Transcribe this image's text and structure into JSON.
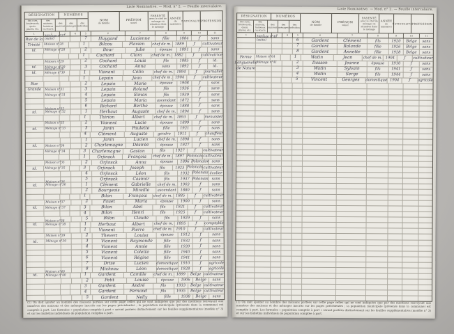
{
  "caption": "Liste Nominative. — Mod. n° 2. — Feuille intercalaire.",
  "header": {
    "designation_group": "DÉSIGNATION",
    "numero_group": "NUMÉROS",
    "sub_rues": "des rues, boulevards, quais, places, etc.",
    "sub_maisons": "des maisons, hameaux ou écarts",
    "sub_num_maisons": "des maisons",
    "sub_num_menages": "des ménages",
    "sub_num_individus": "des individus",
    "nom_main": "NOM",
    "nom_sub": "de famille",
    "prenom_main": "PRÉNOM",
    "prenom_sub": "usuel",
    "parente_main": "PARENTÉ",
    "parente_sub": "avec le chef de ménage ou situation dans le ménage",
    "annee_main": "ANNÉE",
    "annee_sub": "de naissance",
    "nationalite_main": "NATIONALITÉ",
    "profession_main": "PROFESSION",
    "column_numbers": [
      "1",
      "2",
      "3",
      "4",
      "5",
      "6",
      "7",
      "8",
      "9",
      "10",
      "11"
    ]
  },
  "left_page": {
    "rows": [
      [
        "Rue de la",
        "Ménage n°27|(suite)",
        "7",
        "Huygand",
        "Lucienne",
        "fille",
        "1884",
        "ƒ",
        "sans"
      ],
      [
        "Trinité",
        "Maison n°28",
        "1",
        "Bilcou",
        "Flavien",
        "chef de m.",
        "1889",
        "ƒ",
        "cultivateur"
      ],
      [
        "id.",
        "Ménage n°28",
        "2",
        "Bour",
        "Julie",
        "épouse",
        "1891",
        "ƒ",
        "sans"
      ],
      [
        "",
        "",
        "1",
        "Cochard",
        "Clara",
        "chef de m.",
        "1882",
        "ƒ",
        "cultivatrice"
      ],
      [
        "",
        "Maison n°29",
        "2",
        "Cochard",
        "Louis",
        "fils",
        "1885",
        "ƒ",
        "id."
      ],
      [
        "id.",
        "Ménage n°29",
        "3",
        "Cochard",
        "Anna",
        "sans",
        "1892",
        "ƒ",
        "id."
      ],
      [
        "id.",
        "Maison n°30|Ménage n°30",
        "1",
        "Vianant",
        "Célin",
        "chef de m.",
        "1894",
        "ƒ",
        "journalier"
      ],
      [
        "",
        "",
        "1",
        "Lepain",
        "Jean",
        "chef de m.",
        "1904",
        "ƒ",
        "cultivateur"
      ],
      [
        "Rue",
        "",
        "2",
        "Lepain",
        "Marie",
        "épouse",
        "1908",
        "ƒ",
        "sans"
      ],
      [
        "Grande",
        "Maison n°31",
        "3",
        "Lepain",
        "Roland",
        "fils",
        "1936",
        "ƒ",
        "sans"
      ],
      [
        "",
        "Ménage n°31",
        "4",
        "Lepain",
        "Simon",
        "fils",
        "1939",
        "ƒ",
        "sans"
      ],
      [
        "",
        "",
        "5",
        "Lepain",
        "Maria",
        "ascendant",
        "1872",
        "ƒ",
        "sans"
      ],
      [
        "",
        "",
        "6",
        "Richard",
        "Berthe",
        "épouse",
        "1888",
        "ƒ",
        "sans"
      ],
      [
        "id.",
        "Maison n°32|Ménage n°32",
        "1",
        "Herbaut",
        "Auguste",
        "chef de m.",
        "1894",
        "ƒ",
        "sans"
      ],
      [
        "",
        "",
        "1",
        "Thirion",
        "Albert",
        "chef de m.",
        "1893",
        "ƒ",
        "menuisier"
      ],
      [
        "",
        "Maison n°33",
        "2",
        "Vianent",
        "Lucie",
        "épouse",
        "1899",
        "ƒ",
        "sans"
      ],
      [
        "id.",
        "Ménage n°33",
        "3",
        "Janin",
        "Paulette",
        "fille",
        "1921",
        "ƒ",
        "sans"
      ],
      [
        "",
        "",
        "4",
        "Clément",
        "Auguste",
        "gendre",
        "1911",
        "ƒ",
        "chauffeur"
      ],
      [
        "",
        "",
        "1",
        "Janin",
        "Lucien",
        "chef de m.",
        "1898",
        "ƒ",
        "sans"
      ],
      [
        "id.",
        "Maison n°34",
        "2",
        "Charlemagne",
        "Désirée",
        "épouse",
        "1927",
        "ƒ",
        "sans"
      ],
      [
        "",
        "Ménage n°34",
        "3",
        "Charlemagne",
        "Gaston",
        "fils",
        "1927",
        "ƒ",
        "cultivateur"
      ],
      [
        "",
        "",
        "1",
        "Orjinsck",
        "François",
        "chef de m.",
        "1897",
        "Polonais",
        "cultivateur"
      ],
      [
        "",
        "Maison n°35",
        "2",
        "Orjinsck",
        "Anna",
        "épouse",
        "1896",
        "Polonaise",
        "sans"
      ],
      [
        "id.",
        "Ménage n°35",
        "3",
        "Orjinsck",
        "Joseph",
        "fils",
        "1923",
        "Polonais",
        "cultivateur"
      ],
      [
        "",
        "",
        "4",
        "Orjinsck",
        "Léon",
        "fils",
        "1932",
        "Polonais",
        "écolier"
      ],
      [
        "",
        "",
        "5",
        "Orjinsck",
        "Casimir",
        "fils",
        "1937",
        "Polonais",
        "sans"
      ],
      [
        "id.",
        "Maison n°36|Ménage n°36",
        "1",
        "Clément",
        "Gabrielle",
        "chef de m.",
        "1903",
        "ƒ",
        "sans"
      ],
      [
        "",
        "",
        "2",
        "Bourgeois",
        "Mireille",
        "ascendant",
        "1880",
        "ƒ",
        "sans"
      ],
      [
        "",
        "",
        "1",
        "Bilon",
        "François",
        "chef de m.",
        "1885",
        "ƒ",
        "cultivateur"
      ],
      [
        "",
        "Maison n°37",
        "2",
        "Fauet",
        "Maria",
        "épouse",
        "1900",
        "ƒ",
        "sans"
      ],
      [
        "id.",
        "Ménage n°37",
        "3",
        "Bilon",
        "Abel",
        "fils",
        "1921",
        "ƒ",
        "cultivateur"
      ],
      [
        "",
        "",
        "4",
        "Bilon",
        "Henri",
        "fils",
        "1925",
        "ƒ",
        "cultivateur"
      ],
      [
        "",
        "",
        "5",
        "Bilon",
        "Claude",
        "fils",
        "1929",
        "ƒ",
        "sans"
      ],
      [
        "id.",
        "Maison n°38|Ménage n°38",
        "1",
        "Herbaut",
        "Albert",
        "chef de m.",
        "1895",
        "ƒ",
        "comptable"
      ],
      [
        "",
        "",
        "1",
        "Vianent",
        "Pierre",
        "chef de m.",
        "1910",
        "ƒ",
        "cultivateur"
      ],
      [
        "",
        "Maison n°39",
        "2",
        "Thevert",
        "Louisa",
        "épouse",
        "1912",
        "ƒ",
        "sans"
      ],
      [
        "id.",
        "Ménage n°39",
        "3",
        "Vianent",
        "Raymonde",
        "fille",
        "1932",
        "ƒ",
        "sans"
      ],
      [
        "",
        "",
        "4",
        "Vianent",
        "Annie",
        "fille",
        "1939",
        "ƒ",
        "sans"
      ],
      [
        "",
        "",
        "5",
        "Vianent",
        "Colette",
        "fille",
        "1940",
        "ƒ",
        "sans"
      ],
      [
        "",
        "",
        "6",
        "Vianent",
        "Régine",
        "fille",
        "1941",
        "ƒ",
        "sans"
      ],
      [
        "",
        "",
        "7",
        "Drize",
        "Lucien",
        "domestique",
        "1910",
        "ƒ",
        "agricole"
      ],
      [
        "",
        "",
        "8",
        "Micheau",
        "Léon",
        "domestique",
        "1928",
        "ƒ",
        "agricole"
      ],
      [
        "id.",
        "Maison n°40|Ménage n°40",
        "1",
        "Gardent",
        "Camille",
        "chef de m.",
        "1899",
        "Belge",
        "cultivateur"
      ],
      [
        "",
        "",
        "2",
        "Petit",
        "Louise",
        "épouse",
        "1906",
        "Belge",
        "sans"
      ],
      [
        "",
        "",
        "3",
        "Gardent",
        "André",
        "fils",
        "1933",
        "Belge",
        "cultivateur"
      ],
      [
        "",
        "",
        "4",
        "Gardent",
        "Fernand",
        "fils",
        "1935",
        "Belge",
        "cultivateur"
      ],
      [
        "",
        "",
        "5",
        "Gardent",
        "Nelly",
        "fille",
        "1938",
        "Belge",
        "sans"
      ]
    ],
    "empty_row_count": 0
  },
  "right_page": {
    "rows": [
      [
        "",
        "Ménage n°40|(suite)",
        "6",
        "Gardent",
        "Clément",
        "fils",
        "1920",
        "Belge",
        "sans"
      ],
      [
        "",
        "",
        "7",
        "Gardent",
        "Rolande",
        "fille",
        "1926",
        "Belge",
        "sans"
      ],
      [
        "",
        "",
        "8",
        "Gardent",
        "Annette",
        "fille",
        "1928",
        "Belge",
        "sans"
      ],
      [
        "Ferme",
        "Maison n°64",
        "1",
        "Watin",
        "Jean",
        "chef de m.",
        "1904",
        "ƒ",
        "cultivateur"
      ],
      [
        "Longuenelle",
        "Ménage n°41",
        "2",
        "Dasson",
        "Jeanne",
        "épouse",
        "1910",
        "ƒ",
        "sans"
      ],
      [
        "de Nature",
        "",
        "3",
        "Watin",
        "Sylvain",
        "fils",
        "1941",
        "ƒ",
        "sans"
      ],
      [
        "",
        "",
        "4",
        "Watin",
        "Serge",
        "fils",
        "1944",
        "ƒ",
        "sans"
      ],
      [
        "",
        "",
        "5",
        "Vincent",
        "Georges",
        "domestique",
        "1904",
        "ƒ",
        "agricole"
      ]
    ],
    "empty_row_count": 39
  },
  "footnote": "(1) On doit ajouter au nombre des maisons portées sur cette page celles qui ne sont indiquées que par des mentions renvoyant aux numéros des maisons et des ménages inscrits sur les pages précédentes ; la population municipale (présente dans la commune) est comptée à part. Les formules « population comptée à part » seront portées distinctement sur les feuilles supplémentaires (modèle n° 3) et sur les bulletins individuels de population comptée à part.",
  "colors": {
    "background": "#b6b4b1",
    "paper": "#e9e7e1",
    "ink": "#3a3a48",
    "print": "#3e3c36",
    "grid_line": "#76716a"
  }
}
